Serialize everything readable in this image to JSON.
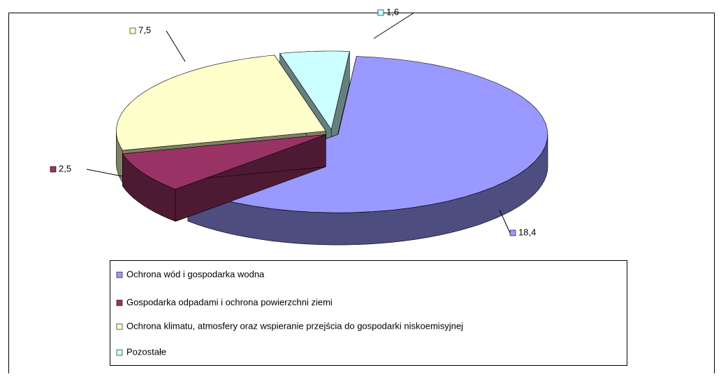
{
  "chart_data": {
    "type": "pie",
    "categories": [
      "Ochrona wód i gospodarka wodna",
      "Gospodarka odpadami i ochrona powierzchni ziemi",
      "Ochrona klimatu, atmosfery oraz wspieranie przejścia do gospodarki niskoemisyjnej",
      "Pozostałe"
    ],
    "values": [
      18.4,
      2.5,
      7.5,
      1.6
    ],
    "value_labels": [
      "18,4",
      "2,5",
      "7,5",
      "1,6"
    ],
    "colors": [
      "#9999ff",
      "#993366",
      "#ffffcc",
      "#ccffff"
    ]
  }
}
